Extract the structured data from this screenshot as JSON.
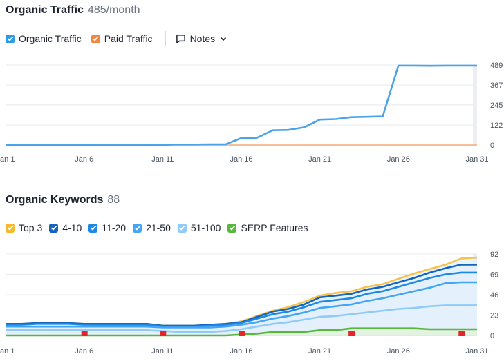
{
  "traffic": {
    "title": "Organic Traffic",
    "metric": "485/month",
    "legend": [
      {
        "label": "Organic Traffic",
        "color": "#2e9be6",
        "checked": true
      },
      {
        "label": "Paid Traffic",
        "color": "#f5853f",
        "checked": true
      }
    ],
    "notes_label": "Notes"
  },
  "keywords": {
    "title": "Organic Keywords",
    "metric": "88",
    "legend": [
      {
        "label": "Top 3",
        "color": "#f5b92e",
        "checked": true
      },
      {
        "label": "4-10",
        "color": "#1565c0",
        "checked": true
      },
      {
        "label": "11-20",
        "color": "#1e88e5",
        "checked": true
      },
      {
        "label": "21-50",
        "color": "#42a5f5",
        "checked": true
      },
      {
        "label": "51-100",
        "color": "#90caf9",
        "checked": true
      },
      {
        "label": "SERP Features",
        "color": "#57b83a",
        "checked": true
      }
    ]
  },
  "chart_data": [
    {
      "type": "line",
      "x": [
        "Jan 1",
        "Jan 2",
        "Jan 3",
        "Jan 4",
        "Jan 5",
        "Jan 6",
        "Jan 7",
        "Jan 8",
        "Jan 9",
        "Jan 10",
        "Jan 11",
        "Jan 12",
        "Jan 13",
        "Jan 14",
        "Jan 15",
        "Jan 16",
        "Jan 17",
        "Jan 18",
        "Jan 19",
        "Jan 20",
        "Jan 21",
        "Jan 22",
        "Jan 23",
        "Jan 24",
        "Jan 25",
        "Jan 26",
        "Jan 27",
        "Jan 28",
        "Jan 29",
        "Jan 30",
        "Jan 31"
      ],
      "x_ticks": [
        "Jan 1",
        "Jan 6",
        "Jan 11",
        "Jan 16",
        "Jan 21",
        "Jan 26",
        "Jan 31"
      ],
      "y_ticks": [
        0,
        122,
        245,
        367,
        489
      ],
      "ylim": [
        0,
        489
      ],
      "grid": true,
      "series": [
        {
          "name": "Organic Traffic",
          "color": "#4aa3e8",
          "values": [
            1,
            1,
            1,
            1,
            1,
            1,
            1,
            1,
            1,
            1,
            1,
            3,
            3,
            4,
            4,
            42,
            44,
            90,
            92,
            108,
            155,
            158,
            170,
            172,
            175,
            485,
            485,
            484,
            485,
            485,
            485
          ]
        },
        {
          "name": "Paid Traffic",
          "color": "#f5a878",
          "values": [
            0,
            0,
            0,
            0,
            0,
            0,
            0,
            0,
            0,
            0,
            0,
            0,
            0,
            0,
            0,
            0,
            0,
            0,
            0,
            0,
            0,
            0,
            0,
            0,
            0,
            0,
            0,
            0,
            0,
            0,
            0
          ]
        }
      ]
    },
    {
      "type": "area",
      "x": [
        "Jan 1",
        "Jan 2",
        "Jan 3",
        "Jan 4",
        "Jan 5",
        "Jan 6",
        "Jan 7",
        "Jan 8",
        "Jan 9",
        "Jan 10",
        "Jan 11",
        "Jan 12",
        "Jan 13",
        "Jan 14",
        "Jan 15",
        "Jan 16",
        "Jan 17",
        "Jan 18",
        "Jan 19",
        "Jan 20",
        "Jan 21",
        "Jan 22",
        "Jan 23",
        "Jan 24",
        "Jan 25",
        "Jan 26",
        "Jan 27",
        "Jan 28",
        "Jan 29",
        "Jan 30",
        "Jan 31"
      ],
      "x_ticks": [
        "Jan 1",
        "Jan 6",
        "Jan 11",
        "Jan 16",
        "Jan 21",
        "Jan 26",
        "Jan 31"
      ],
      "y_ticks": [
        0,
        23,
        46,
        69,
        92
      ],
      "ylim": [
        0,
        92
      ],
      "grid": true,
      "series": [
        {
          "name": "Top 3",
          "color": "#f5c24a",
          "values": [
            13,
            13,
            14,
            14,
            14,
            13,
            13,
            13,
            13,
            13,
            11,
            11,
            11,
            12,
            13,
            16,
            22,
            28,
            32,
            38,
            45,
            48,
            50,
            55,
            58,
            64,
            70,
            75,
            80,
            87,
            88
          ]
        },
        {
          "name": "4-10",
          "color": "#1565c0",
          "values": [
            13,
            13,
            14,
            14,
            14,
            13,
            13,
            13,
            13,
            13,
            11,
            11,
            11,
            12,
            13,
            15,
            21,
            27,
            30,
            35,
            43,
            45,
            47,
            52,
            55,
            60,
            65,
            71,
            76,
            80,
            80
          ]
        },
        {
          "name": "11-20",
          "color": "#1e88e5",
          "values": [
            12,
            12,
            13,
            13,
            13,
            12,
            12,
            12,
            12,
            12,
            10,
            10,
            10,
            11,
            12,
            14,
            19,
            24,
            27,
            32,
            38,
            40,
            42,
            47,
            50,
            55,
            60,
            65,
            69,
            71,
            71
          ]
        },
        {
          "name": "21-50",
          "color": "#42a5f5",
          "values": [
            10,
            10,
            10,
            10,
            10,
            10,
            10,
            10,
            10,
            10,
            9,
            9,
            9,
            9,
            10,
            12,
            15,
            19,
            22,
            26,
            31,
            33,
            35,
            39,
            42,
            46,
            50,
            54,
            59,
            60,
            60
          ]
        },
        {
          "name": "51-100",
          "color": "#90caf9",
          "values": [
            6,
            6,
            6,
            6,
            6,
            6,
            6,
            6,
            6,
            6,
            5,
            4,
            4,
            4,
            5,
            7,
            10,
            13,
            15,
            18,
            21,
            22,
            24,
            26,
            28,
            30,
            31,
            33,
            34,
            34,
            34
          ]
        },
        {
          "name": "SERP Features",
          "color": "#57b83a",
          "values": [
            0,
            0,
            0,
            0,
            0,
            0,
            0,
            0,
            0,
            0,
            0,
            0,
            0,
            0,
            0,
            1,
            2,
            4,
            4,
            4,
            6,
            6,
            8,
            8,
            8,
            8,
            8,
            7,
            7,
            7,
            7
          ]
        }
      ],
      "flags": [
        "Jan 6",
        "Jan 11",
        "Jan 16",
        "Jan 23",
        "Jan 30"
      ]
    }
  ]
}
